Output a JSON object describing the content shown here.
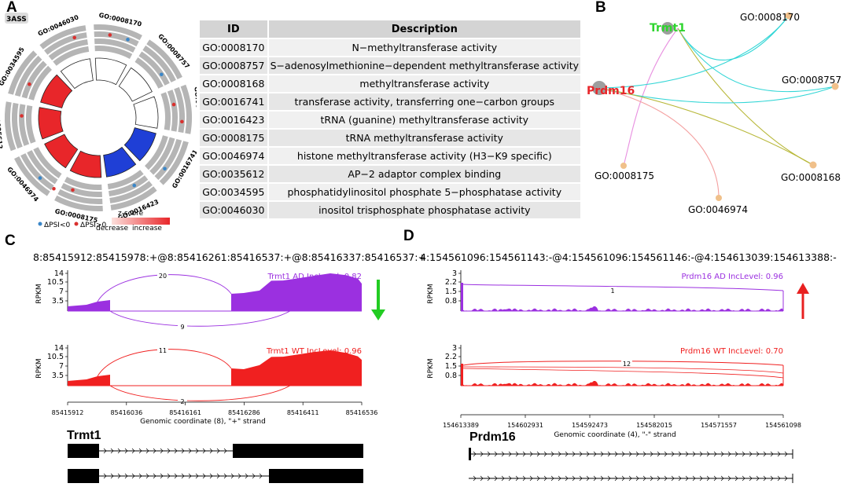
{
  "panels": {
    "a": "A",
    "b": "B",
    "c": "C",
    "d": "D"
  },
  "panel_a": {
    "badge": "3ASS",
    "go_terms": [
      "GO:0008170",
      "GO:0008757",
      "GO:0008168",
      "GO:0016741",
      "GO:0016423",
      "GO:0008175",
      "GO:0046974",
      "GO:0035612",
      "GO:0034595",
      "GO:0046030"
    ],
    "legend": {
      "psi_neg": "ΔPSI<0",
      "psi_pos": "ΔPSI>0",
      "zscore": "z-score",
      "decrease": "decrease",
      "increase": "increase"
    },
    "colors": {
      "red": "#e8262a",
      "blue": "#1f3fd6",
      "psi_neg_dot": "#3a86c8",
      "psi_pos_dot": "#d9302e"
    }
  },
  "table": {
    "headers": [
      "ID",
      "Description"
    ],
    "rows": [
      [
        "GO:0008170",
        "N−methyltransferase activity"
      ],
      [
        "GO:0008757",
        "S−adenosylmethionine−dependent methyltransferase activity"
      ],
      [
        "GO:0008168",
        "methyltransferase activity"
      ],
      [
        "GO:0016741",
        "transferase activity, transferring one−carbon groups"
      ],
      [
        "GO:0016423",
        "tRNA (guanine) methyltransferase activity"
      ],
      [
        "GO:0008175",
        "tRNA methyltransferase activity"
      ],
      [
        "GO:0046974",
        "histone methyltransferase activity (H3−K9 specific)"
      ],
      [
        "GO:0035612",
        "AP−2 adaptor complex binding"
      ],
      [
        "GO:0034595",
        "phosphatidylinositol phosphate 5−phosphatase activity"
      ],
      [
        "GO:0046030",
        "inositol trisphosphate phosphatase activity"
      ]
    ]
  },
  "panel_b": {
    "genes": [
      "Trmt1",
      "Prdm16"
    ],
    "terms": [
      "GO:0008170",
      "GO:0008757",
      "GO:0008168",
      "GO:0008175",
      "GO:0046974"
    ],
    "colors": {
      "trmt1": "#2ed52e",
      "prdm16": "#e8262a",
      "node": "#f0c08a",
      "gene_node": "#9e9e9e"
    }
  },
  "panel_c": {
    "coords": "8:85415912:85415978:+@8:85416261:85416537:+@8:85416337:85416537:+",
    "ad_label": "Trmt1 AD IncLevel: 0.82",
    "wt_label": "Trmt1 WT IncLevel: 0.96",
    "ylabel": "RPKM",
    "yticks": [
      "14",
      "10.5",
      "7",
      "3.5"
    ],
    "ad_junctions": [
      "20",
      "9"
    ],
    "wt_junctions": [
      "11",
      "2"
    ],
    "xticks": [
      "85415912",
      "85416036",
      "85416161",
      "85416286",
      "85416411",
      "85416536"
    ],
    "xlabel": "Genomic coordinate (8), \"+\" strand",
    "gene": "Trmt1",
    "colors": {
      "ad": "#9b30e0",
      "wt": "#f02020",
      "arrow": "#22cc22"
    }
  },
  "panel_d": {
    "coords": "4:154561096:154561143:-@4:154561096:154561146:-@4:154613039:154613388:-",
    "ad_label": "Prdm16 AD IncLevel: 0.96",
    "wt_label": "Prdm16 WT IncLevel: 0.70",
    "ylabel": "RPKM",
    "yticks": [
      "3",
      "2.2",
      "1.5",
      "0.8"
    ],
    "ad_junctions": [
      "1"
    ],
    "wt_junctions": [
      "12"
    ],
    "xticks": [
      "154613389",
      "154602931",
      "154592473",
      "154582015",
      "154571557",
      "154561098"
    ],
    "xlabel": "Genomic coordinate (4), \"-\" strand",
    "gene": "Prdm16",
    "colors": {
      "ad": "#9b30e0",
      "wt": "#f02020",
      "arrow": "#e82020"
    }
  }
}
